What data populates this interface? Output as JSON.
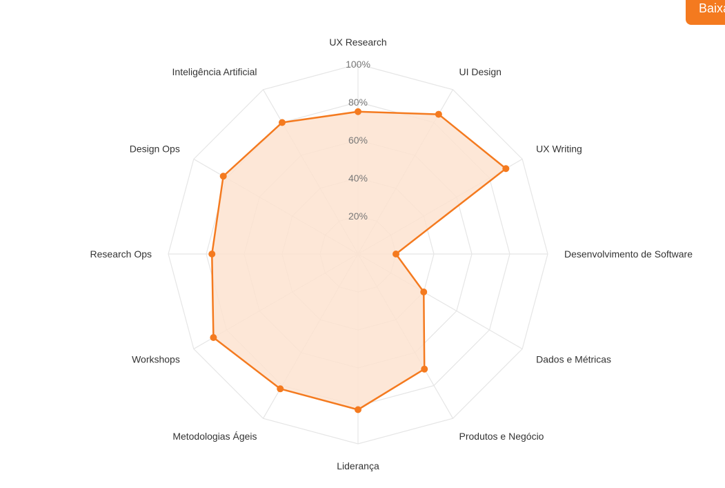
{
  "download_button": {
    "label": "Baixar"
  },
  "colors": {
    "accent": "#f47a1f",
    "fill": "#fde3d0",
    "grid": "#e5e5e5"
  },
  "chart_data": {
    "type": "radar",
    "axes": [
      "UX Research",
      "UI Design",
      "UX Writing",
      "Desenvolvimento de Software",
      "Dados e Métricas",
      "Produtos e Negócio",
      "Liderança",
      "Metodologias Ágeis",
      "Workshops",
      "Research Ops",
      "Design Ops",
      "Inteligência Artificial"
    ],
    "values": [
      75,
      85,
      90,
      20,
      40,
      70,
      82,
      82,
      88,
      77,
      82,
      80
    ],
    "unit": "%",
    "range": [
      0,
      100
    ],
    "ticks": [
      "20%",
      "40%",
      "60%",
      "80%",
      "100%"
    ],
    "tick_values": [
      20,
      40,
      60,
      80,
      100
    ],
    "grid": true
  }
}
